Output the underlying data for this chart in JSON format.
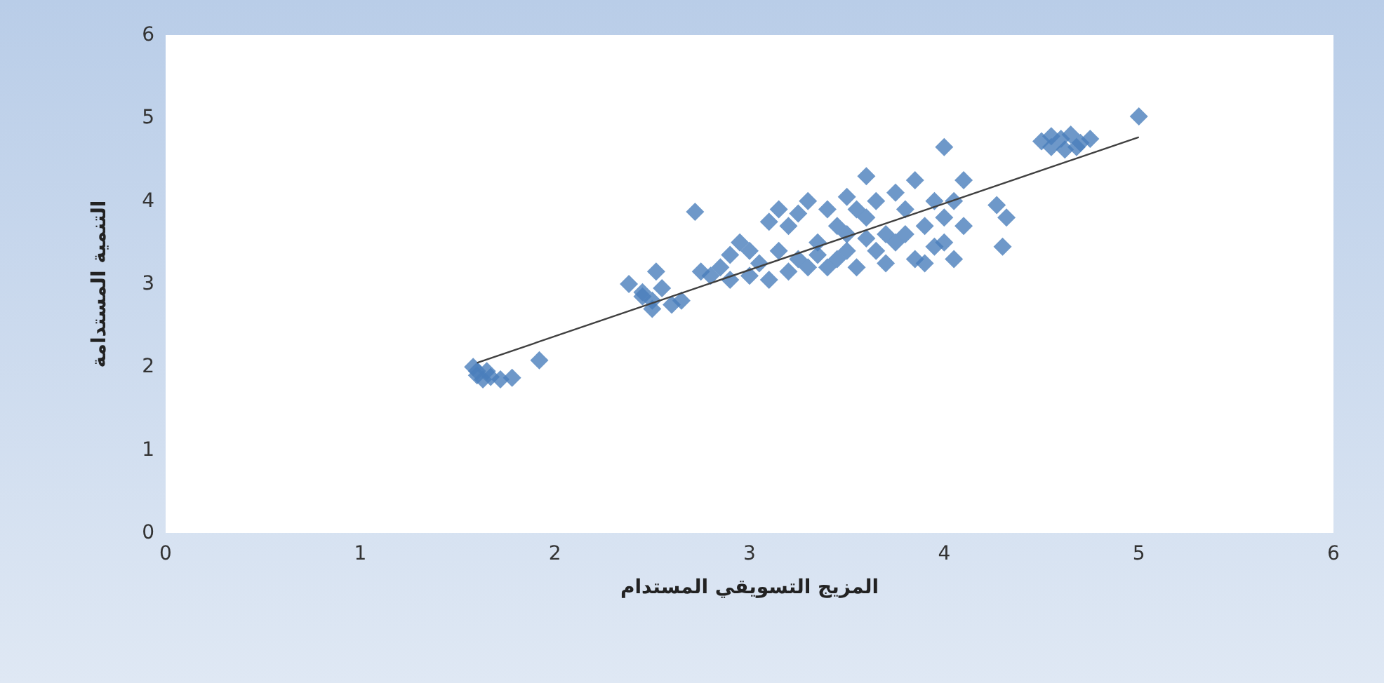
{
  "chart_data": {
    "type": "scatter",
    "xlabel": "المزيج التسويقي المستدام",
    "ylabel": "التنمية المستدامة",
    "xlim": [
      0,
      6
    ],
    "xticks": [
      0,
      1,
      2,
      3,
      4,
      5,
      6
    ],
    "ylim": [
      0,
      6
    ],
    "yticks": [
      0,
      1,
      2,
      3,
      4,
      5,
      6
    ],
    "grid": false,
    "marker": "diamond",
    "series": [
      {
        "color": "#4a7ebb",
        "x": [
          1.58,
          1.6,
          1.63,
          1.67,
          1.72,
          1.78,
          1.6,
          1.65,
          1.92,
          2.38,
          2.45,
          2.5,
          2.52,
          2.55,
          2.6,
          2.5,
          2.65,
          2.45,
          2.72,
          2.75,
          2.8,
          2.85,
          2.9,
          2.95,
          2.9,
          3.0,
          3.05,
          3.1,
          3.15,
          3.2,
          3.1,
          3.25,
          3.3,
          3.3,
          3.35,
          3.4,
          3.45,
          3.5,
          3.5,
          3.55,
          3.6,
          3.6,
          3.65,
          3.7,
          3.75,
          3.8,
          3.85,
          3.85,
          3.9,
          3.95,
          4.0,
          4.0,
          4.05,
          4.1,
          4.1,
          4.05,
          3.25,
          3.4,
          3.45,
          3.55,
          3.7,
          3.75,
          3.9,
          3.95,
          3.2,
          3.0,
          3.15,
          3.35,
          3.65,
          3.8,
          4.0,
          3.5,
          3.6,
          4.27,
          4.32,
          4.3,
          4.5,
          4.55,
          4.6,
          4.65,
          4.7,
          4.75,
          4.62,
          4.68,
          4.55,
          5.0
        ],
        "values": [
          2.0,
          1.9,
          1.85,
          1.88,
          1.85,
          1.87,
          1.95,
          1.95,
          2.08,
          3.0,
          2.9,
          2.8,
          3.15,
          2.95,
          2.75,
          2.7,
          2.8,
          2.85,
          3.87,
          3.15,
          3.1,
          3.2,
          3.35,
          3.5,
          3.05,
          3.1,
          3.25,
          3.05,
          3.4,
          3.7,
          3.75,
          3.85,
          4.0,
          3.2,
          3.5,
          3.9,
          3.3,
          4.05,
          3.6,
          3.2,
          4.3,
          3.8,
          3.4,
          3.6,
          4.1,
          3.9,
          4.25,
          3.3,
          3.7,
          4.0,
          4.65,
          3.5,
          3.3,
          4.25,
          3.7,
          4.0,
          3.3,
          3.2,
          3.7,
          3.9,
          3.25,
          3.5,
          3.25,
          3.45,
          3.15,
          3.4,
          3.9,
          3.35,
          4.0,
          3.6,
          3.8,
          3.4,
          3.55,
          3.95,
          3.8,
          3.45,
          4.72,
          4.65,
          4.75,
          4.8,
          4.7,
          4.75,
          4.62,
          4.65,
          4.78,
          5.02
        ]
      },
      {
        "type": "line",
        "color": "#404040",
        "marker": "none",
        "line_style": "solid",
        "x": [
          1.6,
          5.0
        ],
        "values": [
          2.05,
          4.77
        ]
      }
    ]
  }
}
